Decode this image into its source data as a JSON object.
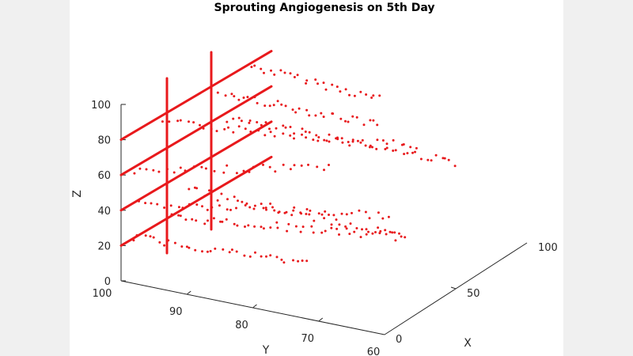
{
  "chart_data": {
    "type": "scatter3d",
    "title": "Sprouting Angiogenesis on 5th Day",
    "xlabel": "X",
    "ylabel": "Y",
    "zlabel": "Z",
    "xlim": [
      0,
      100
    ],
    "ylim": [
      60,
      100
    ],
    "zlim": [
      0,
      110
    ],
    "xticks": [
      "0",
      "50",
      "100"
    ],
    "yticks": [
      "100",
      "90",
      "80",
      "70",
      "60"
    ],
    "zticks": [
      "0",
      "20",
      "40",
      "60",
      "80",
      "100"
    ],
    "color": "#e8191c",
    "grid": false,
    "vessel_lines": {
      "description": "solid red vessels: horizontal lines at Z levels, crossed by two vertical lines",
      "z_levels": [
        20,
        40,
        60,
        80
      ],
      "vertical_lines": 2
    },
    "sprout_rows": [
      {
        "z": 100,
        "x_extent": [
          0,
          60
        ]
      },
      {
        "z": 90,
        "x_extent": [
          0,
          55
        ]
      },
      {
        "z": 80,
        "x_extent": [
          0,
          80
        ]
      },
      {
        "z": 70,
        "x_extent": [
          0,
          85
        ]
      },
      {
        "z": 60,
        "x_extent": [
          0,
          55
        ]
      },
      {
        "z": 50,
        "x_extent": [
          0,
          60
        ]
      },
      {
        "z": 40,
        "x_extent": [
          0,
          75
        ]
      },
      {
        "z": 30,
        "x_extent": [
          0,
          80
        ]
      },
      {
        "z": 20,
        "x_extent": [
          0,
          50
        ]
      }
    ]
  }
}
